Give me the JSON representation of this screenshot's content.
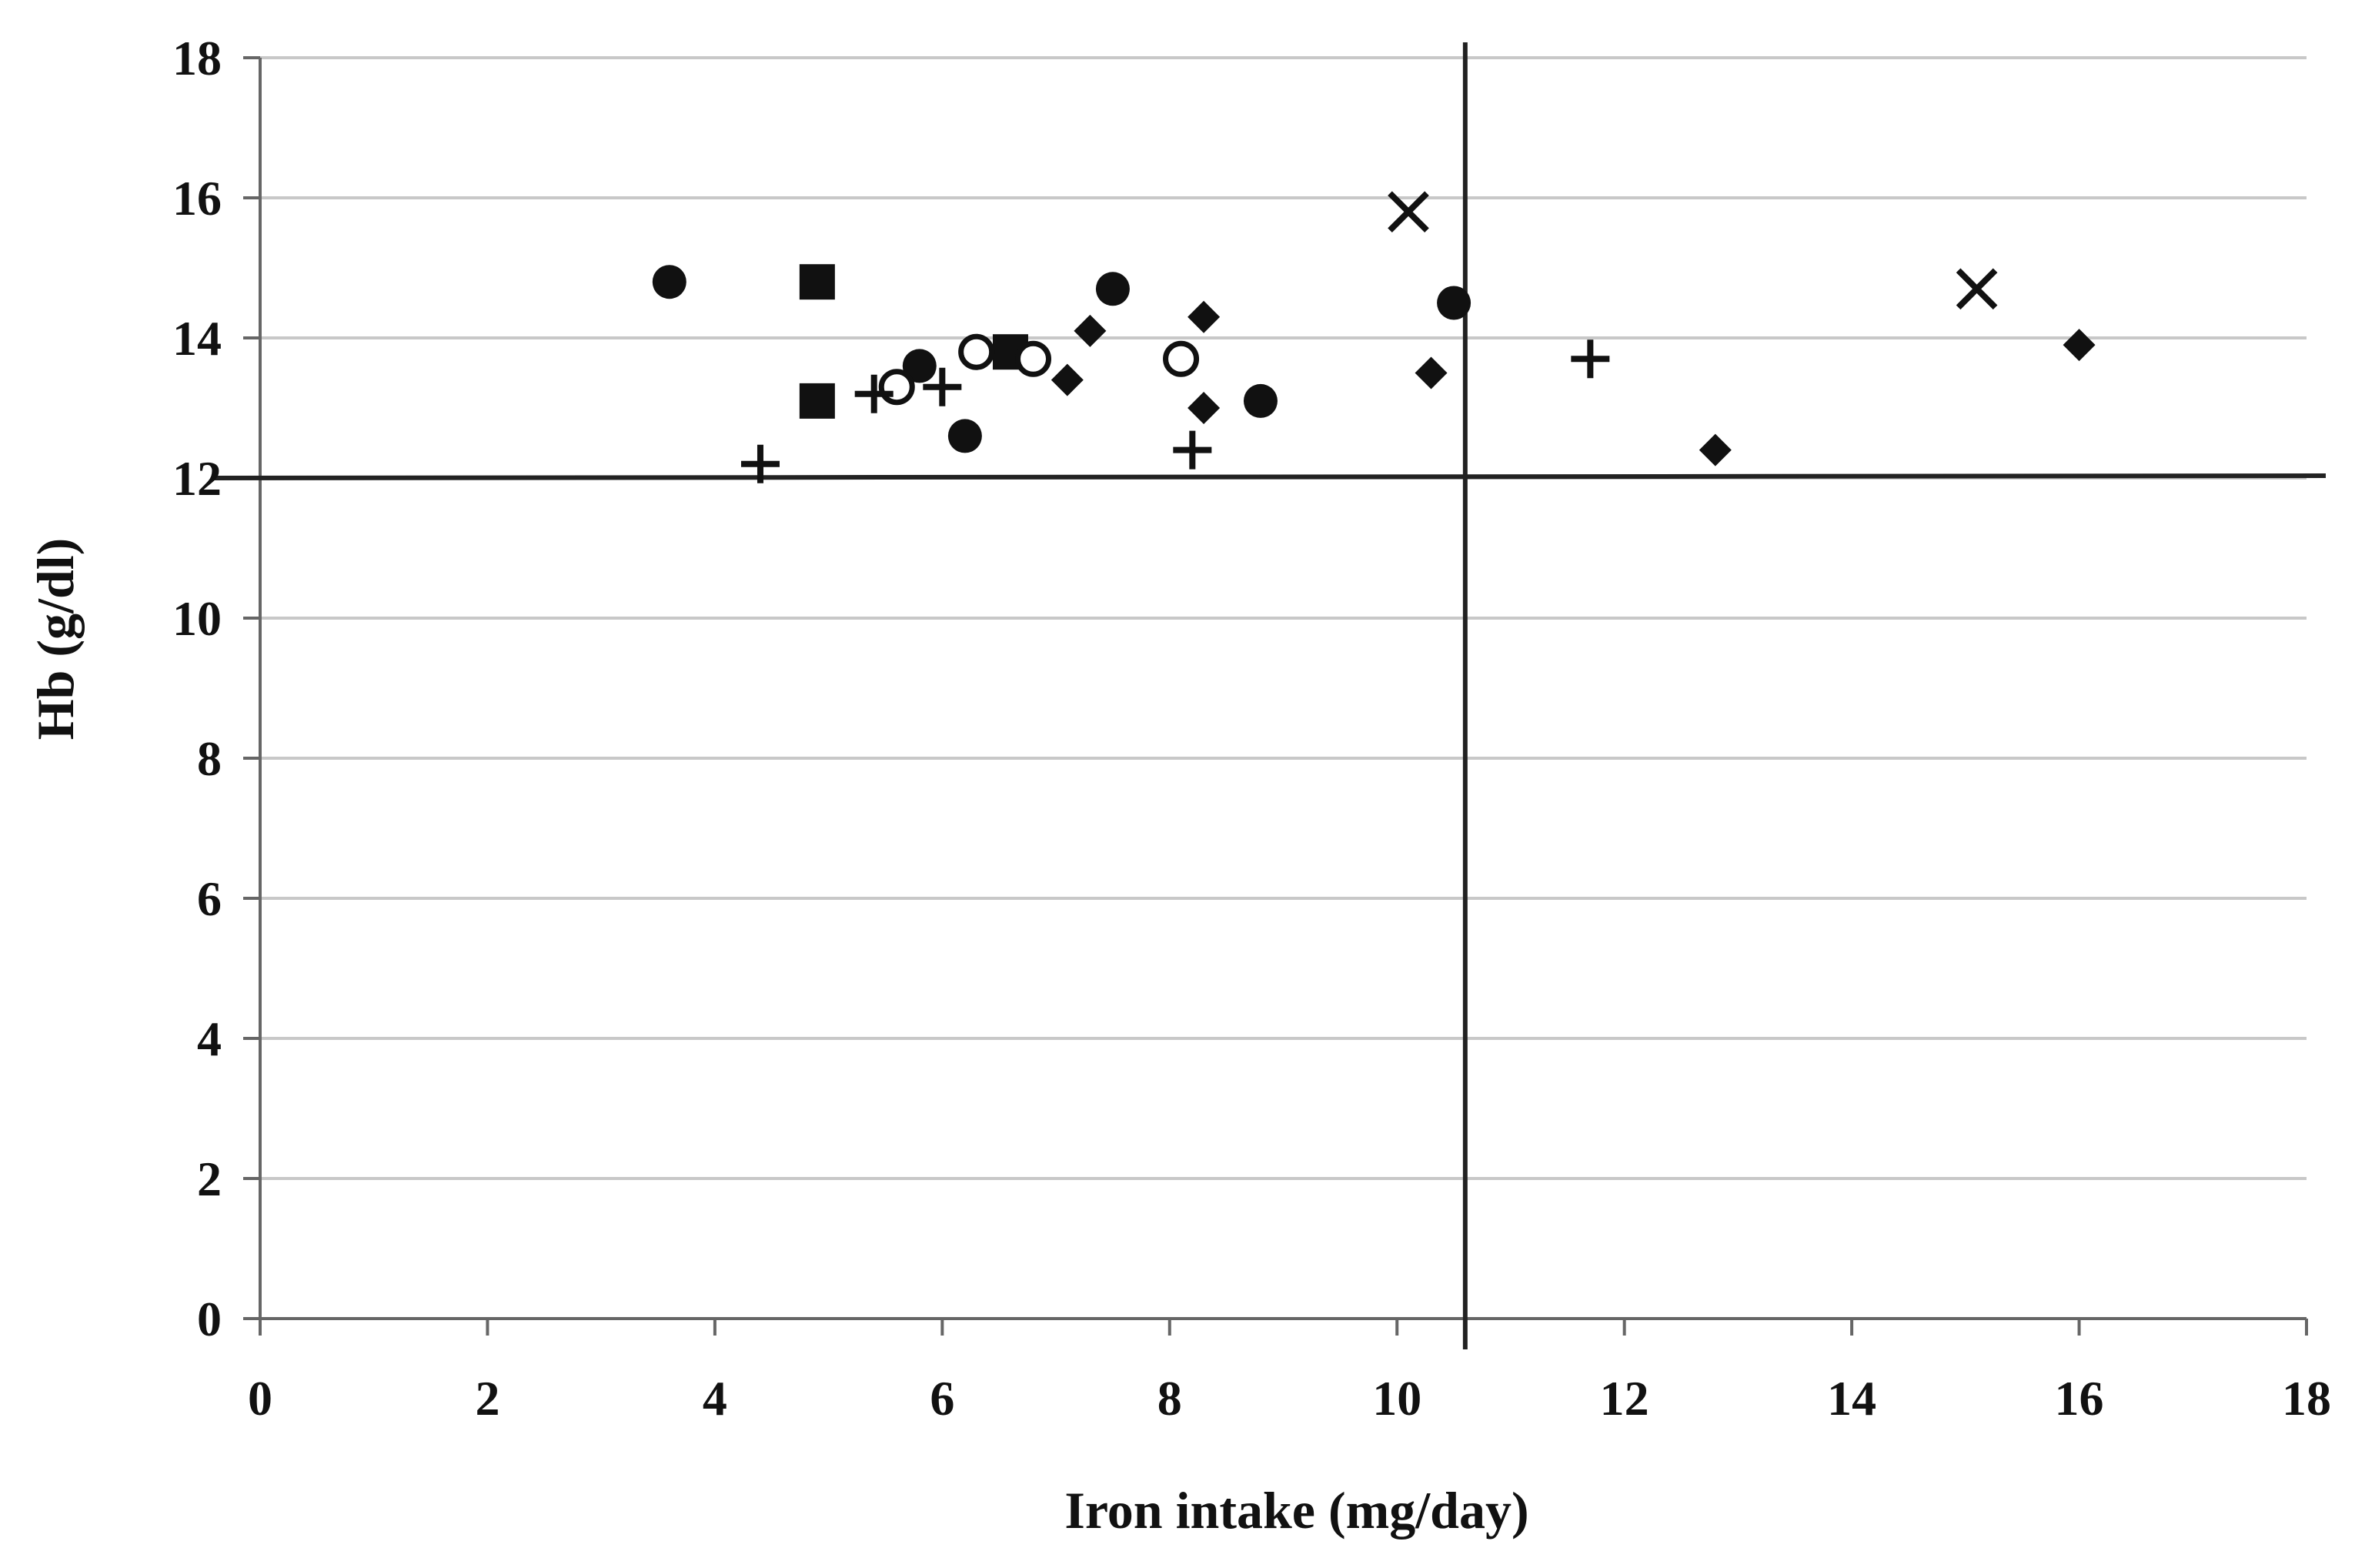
{
  "chart_data": {
    "type": "scatter",
    "xlabel": "Iron intake (mg/day)",
    "ylabel": "Hb (g/dl)",
    "xlim": [
      0,
      18
    ],
    "ylim": [
      0,
      18
    ],
    "x_ticks": [
      "0",
      "2",
      "4",
      "6",
      "8",
      "10",
      "12",
      "14",
      "16",
      "18"
    ],
    "y_ticks": [
      "0",
      "2",
      "4",
      "6",
      "8",
      "10",
      "12",
      "14",
      "16",
      "18"
    ],
    "grid": "horizontal",
    "legend": "none",
    "reference_lines": {
      "x": 10.6,
      "y": 12
    },
    "series": [
      {
        "marker": "circle-filled",
        "points": [
          [
            3.6,
            14.8
          ],
          [
            5.8,
            13.6
          ],
          [
            6.2,
            12.6
          ],
          [
            7.5,
            14.7
          ],
          [
            8.8,
            13.1
          ],
          [
            10.5,
            14.5
          ]
        ]
      },
      {
        "marker": "square-filled",
        "points": [
          [
            4.9,
            14.8
          ],
          [
            4.9,
            13.1
          ],
          [
            6.6,
            13.8
          ]
        ]
      },
      {
        "marker": "diamond-filled",
        "points": [
          [
            7.1,
            13.4
          ],
          [
            7.3,
            14.1
          ],
          [
            8.3,
            14.3
          ],
          [
            8.3,
            13.0
          ],
          [
            10.3,
            13.5
          ],
          [
            12.8,
            12.4
          ],
          [
            16.0,
            13.9
          ]
        ]
      },
      {
        "marker": "circle-open",
        "points": [
          [
            5.6,
            13.3
          ],
          [
            6.3,
            13.8
          ],
          [
            6.8,
            13.7
          ],
          [
            8.1,
            13.7
          ]
        ]
      },
      {
        "marker": "plus",
        "points": [
          [
            4.4,
            12.2
          ],
          [
            5.4,
            13.2
          ],
          [
            6.0,
            13.3
          ],
          [
            8.2,
            12.4
          ],
          [
            11.7,
            13.7
          ]
        ]
      },
      {
        "marker": "cross",
        "points": [
          [
            10.1,
            15.8
          ],
          [
            15.1,
            14.7
          ]
        ]
      }
    ],
    "colors": {
      "marker": "#111111",
      "grid": "#c8c8c8",
      "axis": "#666666",
      "reference": "#222222"
    }
  }
}
